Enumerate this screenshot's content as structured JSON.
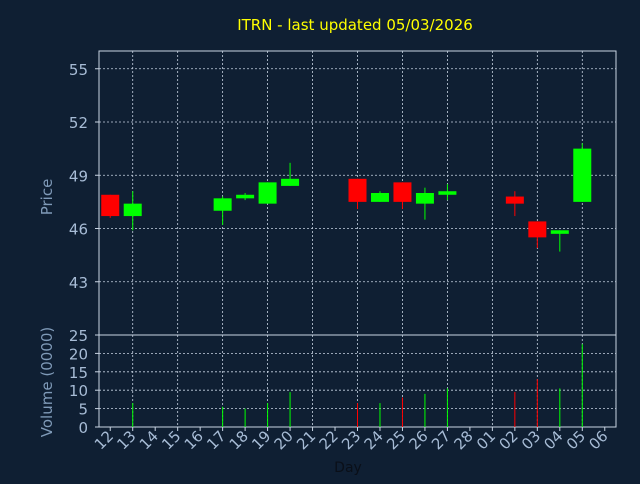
{
  "chart_data": [
    {
      "type": "candlestick",
      "title": "ITRN - last updated 05/03/2026",
      "ylabel": "Price",
      "ylim": [
        40,
        56
      ],
      "yticks": [
        43,
        46,
        49,
        52,
        55
      ],
      "grid": true,
      "colors": {
        "up": "#00ff00",
        "down": "#ff0000",
        "title": "#ffff00",
        "axis_text": "#a7bcd6",
        "label_text": "#7f9ab8",
        "background": "#0f1f33"
      },
      "candles": [
        {
          "slot": 0,
          "open": 47.9,
          "high": 47.9,
          "low": 46.6,
          "close": 46.7
        },
        {
          "slot": 1,
          "open": 46.7,
          "high": 48.1,
          "low": 45.9,
          "close": 47.4
        },
        {
          "slot": 5,
          "open": 47.0,
          "high": 47.8,
          "low": 46.2,
          "close": 47.7
        },
        {
          "slot": 6,
          "open": 47.7,
          "high": 48.0,
          "low": 47.6,
          "close": 47.9
        },
        {
          "slot": 7,
          "open": 47.4,
          "high": 48.6,
          "low": 47.4,
          "close": 48.6
        },
        {
          "slot": 8,
          "open": 48.4,
          "high": 49.7,
          "low": 48.4,
          "close": 48.8
        },
        {
          "slot": 11,
          "open": 48.8,
          "high": 48.8,
          "low": 47.1,
          "close": 47.5
        },
        {
          "slot": 12,
          "open": 47.5,
          "high": 48.1,
          "low": 47.5,
          "close": 48.0
        },
        {
          "slot": 13,
          "open": 48.6,
          "high": 48.6,
          "low": 47.1,
          "close": 47.5
        },
        {
          "slot": 14,
          "open": 47.4,
          "high": 48.3,
          "low": 46.5,
          "close": 48.0
        },
        {
          "slot": 15,
          "open": 47.9,
          "high": 48.5,
          "low": 47.6,
          "close": 48.1
        },
        {
          "slot": 18,
          "open": 47.8,
          "high": 48.1,
          "low": 46.7,
          "close": 47.4
        },
        {
          "slot": 19,
          "open": 46.4,
          "high": 46.4,
          "low": 44.9,
          "close": 45.5
        },
        {
          "slot": 20,
          "open": 45.7,
          "high": 45.9,
          "low": 44.7,
          "close": 45.9
        },
        {
          "slot": 21,
          "open": 47.5,
          "high": 50.8,
          "low": 47.5,
          "close": 50.5
        }
      ]
    },
    {
      "type": "bar",
      "xlabel": "Day",
      "ylabel": "Volume (0000)",
      "ylim": [
        0,
        25
      ],
      "yticks": [
        0,
        5,
        10,
        15,
        20,
        25
      ],
      "categories": [
        "12",
        "13",
        "14",
        "15",
        "16",
        "17",
        "18",
        "19",
        "20",
        "21",
        "22",
        "23",
        "24",
        "25",
        "26",
        "27",
        "28",
        "01",
        "02",
        "03",
        "04",
        "05",
        "06"
      ],
      "volumes": [
        {
          "slot": 1,
          "value": 6.5,
          "color": "green"
        },
        {
          "slot": 5,
          "value": 5.5,
          "color": "green"
        },
        {
          "slot": 6,
          "value": 5.0,
          "color": "green"
        },
        {
          "slot": 7,
          "value": 6.5,
          "color": "green"
        },
        {
          "slot": 8,
          "value": 9.5,
          "color": "green"
        },
        {
          "slot": 11,
          "value": 6.5,
          "color": "red"
        },
        {
          "slot": 12,
          "value": 6.5,
          "color": "green"
        },
        {
          "slot": 13,
          "value": 8.0,
          "color": "red"
        },
        {
          "slot": 14,
          "value": 9.0,
          "color": "green"
        },
        {
          "slot": 15,
          "value": 10.5,
          "color": "green"
        },
        {
          "slot": 18,
          "value": 9.5,
          "color": "red"
        },
        {
          "slot": 19,
          "value": 13.0,
          "color": "red"
        },
        {
          "slot": 20,
          "value": 10.5,
          "color": "green"
        },
        {
          "slot": 21,
          "value": 22.5,
          "color": "green"
        }
      ]
    }
  ]
}
